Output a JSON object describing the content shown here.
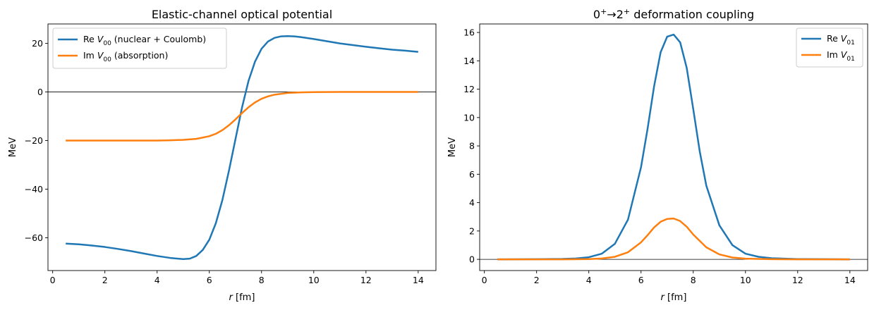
{
  "chart_data": [
    {
      "type": "line",
      "title": "Elastic-channel optical potential",
      "xlabel": "r [fm]",
      "ylabel": "MeV",
      "xlim": [
        -0.18,
        14.68
      ],
      "ylim": [
        -73.5,
        28.0
      ],
      "xticks": [
        0,
        2,
        4,
        6,
        8,
        10,
        12,
        14
      ],
      "yticks": [
        -60,
        -40,
        -20,
        0,
        20
      ],
      "zero_line": true,
      "legend_position": "upper-left",
      "series": [
        {
          "name": "Re V00 (nuclear + Coulomb)",
          "color": "#1f77b4",
          "x": [
            0.5,
            1.0,
            1.5,
            2.0,
            2.5,
            3.0,
            3.5,
            4.0,
            4.5,
            5.0,
            5.25,
            5.5,
            5.75,
            6.0,
            6.25,
            6.5,
            6.75,
            7.0,
            7.25,
            7.5,
            7.75,
            8.0,
            8.25,
            8.5,
            8.75,
            9.0,
            9.25,
            9.5,
            9.75,
            10.0,
            10.5,
            11.0,
            11.5,
            12.0,
            12.5,
            13.0,
            13.5,
            14.0
          ],
          "y": [
            -62.4,
            -62.7,
            -63.2,
            -63.8,
            -64.6,
            -65.5,
            -66.5,
            -67.5,
            -68.3,
            -68.8,
            -68.6,
            -67.5,
            -65.0,
            -60.8,
            -54.0,
            -44.5,
            -32.5,
            -19.5,
            -6.5,
            4.5,
            12.5,
            17.8,
            20.8,
            22.3,
            22.9,
            23.0,
            22.9,
            22.6,
            22.2,
            21.8,
            20.9,
            20.0,
            19.3,
            18.6,
            18.0,
            17.4,
            17.0,
            16.5
          ]
        },
        {
          "name": "Im V00 (absorption)",
          "color": "#ff7f0e",
          "x": [
            0.5,
            1.0,
            2.0,
            3.0,
            4.0,
            4.5,
            5.0,
            5.5,
            6.0,
            6.25,
            6.5,
            6.75,
            7.0,
            7.25,
            7.5,
            7.75,
            8.0,
            8.25,
            8.5,
            9.0,
            9.5,
            10.0,
            11.0,
            12.0,
            13.0,
            14.0
          ],
          "y": [
            -20.0,
            -20.0,
            -20.0,
            -20.0,
            -20.0,
            -19.9,
            -19.7,
            -19.3,
            -18.2,
            -17.2,
            -15.7,
            -13.7,
            -11.3,
            -8.7,
            -6.3,
            -4.3,
            -2.8,
            -1.8,
            -1.1,
            -0.4,
            -0.15,
            -0.05,
            0.0,
            0.0,
            0.0,
            0.0
          ]
        }
      ]
    },
    {
      "type": "line",
      "title_parts": {
        "lead": "0",
        "sup1": "+",
        "arrow": "→2",
        "sup2": "+",
        "tail": "deformation coupling"
      },
      "xlabel": "r [fm]",
      "ylabel": "MeV",
      "xlim": [
        -0.18,
        14.68
      ],
      "ylim": [
        -0.79,
        16.6
      ],
      "xticks": [
        0,
        2,
        4,
        6,
        8,
        10,
        12,
        14
      ],
      "yticks": [
        0,
        2,
        4,
        6,
        8,
        10,
        12,
        14,
        16
      ],
      "zero_line": true,
      "legend_position": "upper-right",
      "series": [
        {
          "name": "Re V01",
          "color": "#1f77b4",
          "x": [
            0.5,
            2.0,
            3.0,
            3.5,
            4.0,
            4.5,
            5.0,
            5.5,
            6.0,
            6.25,
            6.5,
            6.75,
            7.0,
            7.25,
            7.5,
            7.75,
            8.0,
            8.25,
            8.5,
            9.0,
            9.5,
            10.0,
            10.5,
            11.0,
            12.0,
            13.0,
            14.0
          ],
          "y": [
            0.0,
            0.01,
            0.03,
            0.06,
            0.15,
            0.4,
            1.1,
            2.8,
            6.5,
            9.2,
            12.2,
            14.6,
            15.7,
            15.85,
            15.3,
            13.5,
            10.6,
            7.6,
            5.2,
            2.4,
            1.0,
            0.4,
            0.18,
            0.08,
            0.02,
            0.01,
            0.0
          ]
        },
        {
          "name": "Im V01",
          "color": "#ff7f0e",
          "x": [
            0.5,
            2.0,
            3.0,
            4.0,
            4.5,
            5.0,
            5.5,
            6.0,
            6.25,
            6.5,
            6.75,
            7.0,
            7.25,
            7.5,
            7.75,
            8.0,
            8.5,
            9.0,
            9.5,
            10.0,
            11.0,
            12.0,
            14.0
          ],
          "y": [
            0.0,
            0.0,
            0.0,
            0.02,
            0.06,
            0.18,
            0.5,
            1.2,
            1.7,
            2.25,
            2.65,
            2.85,
            2.88,
            2.7,
            2.3,
            1.75,
            0.85,
            0.35,
            0.13,
            0.05,
            0.01,
            0.0,
            0.0
          ]
        }
      ]
    }
  ]
}
